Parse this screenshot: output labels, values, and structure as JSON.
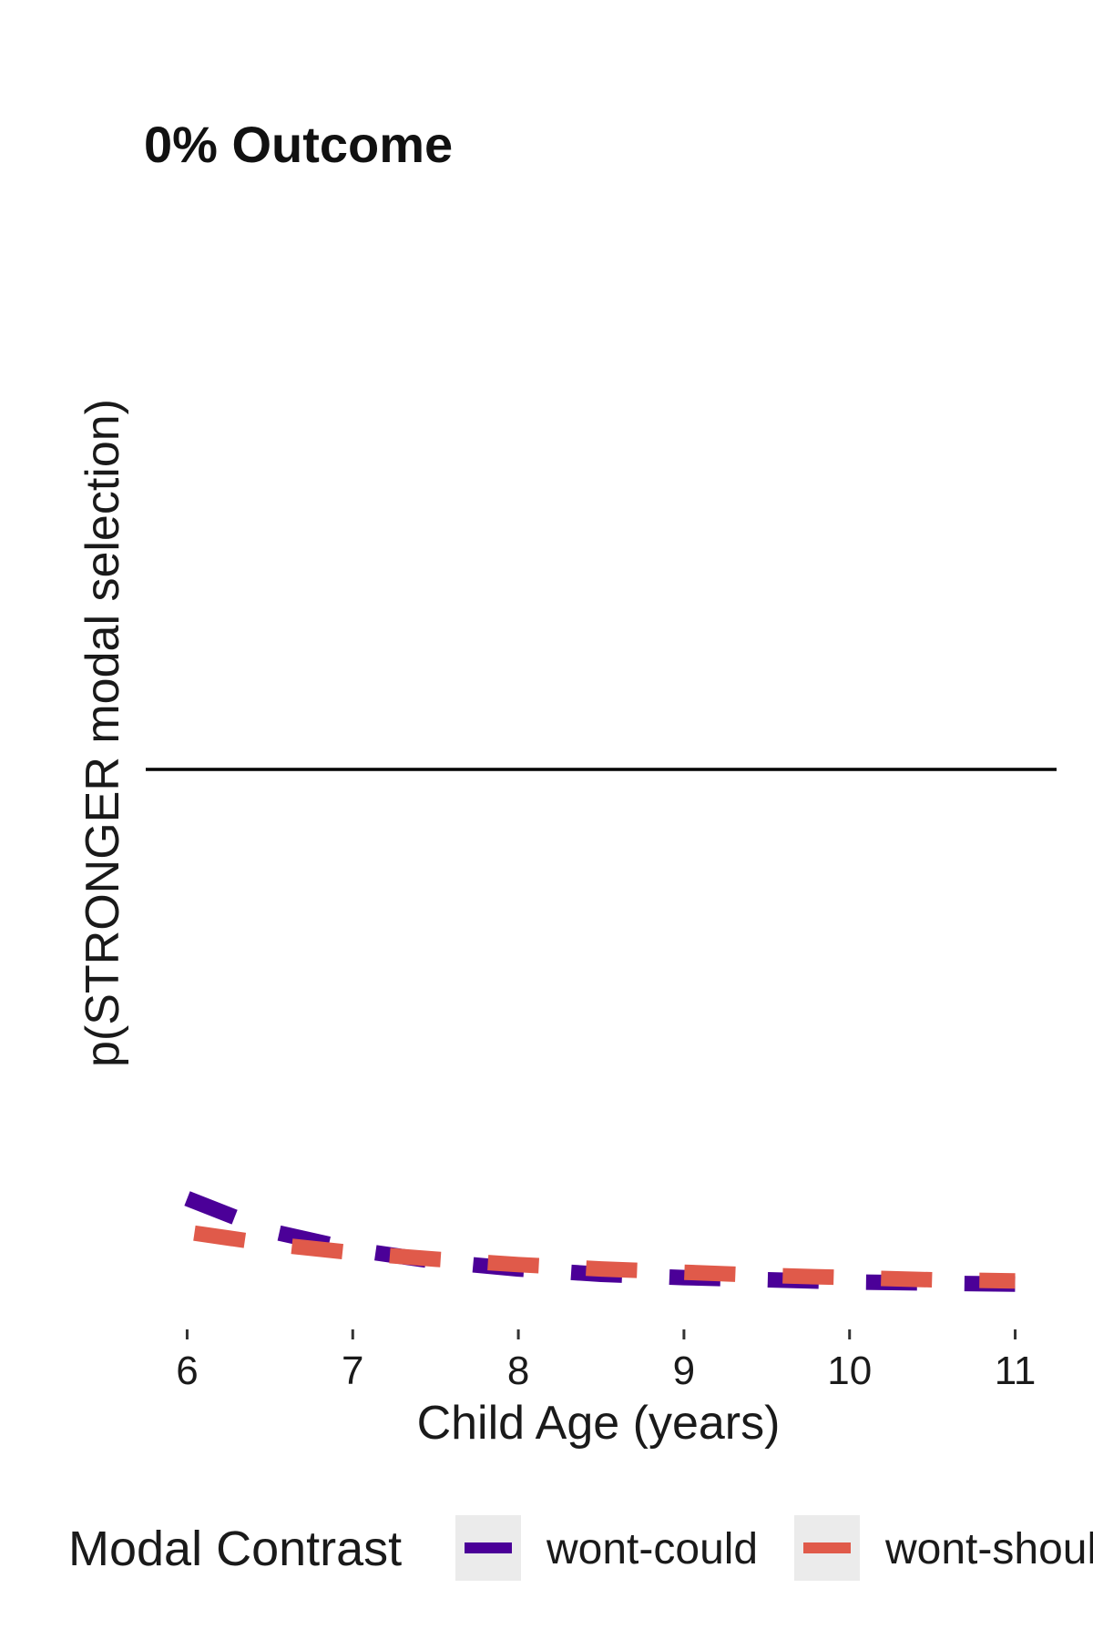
{
  "chart_data": {
    "type": "line",
    "title": "0% Outcome",
    "xlabel": "Child Age (years)",
    "ylabel": "p(STRONGER modal selection)",
    "xlim": [
      5.75,
      11.25
    ],
    "ylim": [
      0,
      1
    ],
    "x_ticks": [
      "6",
      "7",
      "8",
      "9",
      "10",
      "11"
    ],
    "y_ticks": [],
    "reference_line": {
      "y": 0.5
    },
    "grid": false,
    "legend": {
      "title": "Modal Contrast",
      "position": "bottom"
    },
    "series": [
      {
        "name": "wont-could",
        "color": "#4b0098",
        "line_style": "dashed",
        "x": [
          6.0,
          6.5,
          7.0,
          7.5,
          8.0,
          8.5,
          9.0,
          9.5,
          10.0,
          10.5,
          11.0
        ],
        "y": [
          0.104,
          0.074,
          0.057,
          0.046,
          0.039,
          0.034,
          0.031,
          0.029,
          0.027,
          0.026,
          0.025
        ]
      },
      {
        "name": "wont-should",
        "color": "#e05a4a",
        "line_style": "dashed",
        "x": [
          6.0,
          6.5,
          7.0,
          7.5,
          8.0,
          8.5,
          9.0,
          9.5,
          10.0,
          10.5,
          11.0
        ],
        "y": [
          0.073,
          0.062,
          0.054,
          0.048,
          0.043,
          0.039,
          0.036,
          0.033,
          0.031,
          0.029,
          0.028
        ]
      }
    ]
  }
}
